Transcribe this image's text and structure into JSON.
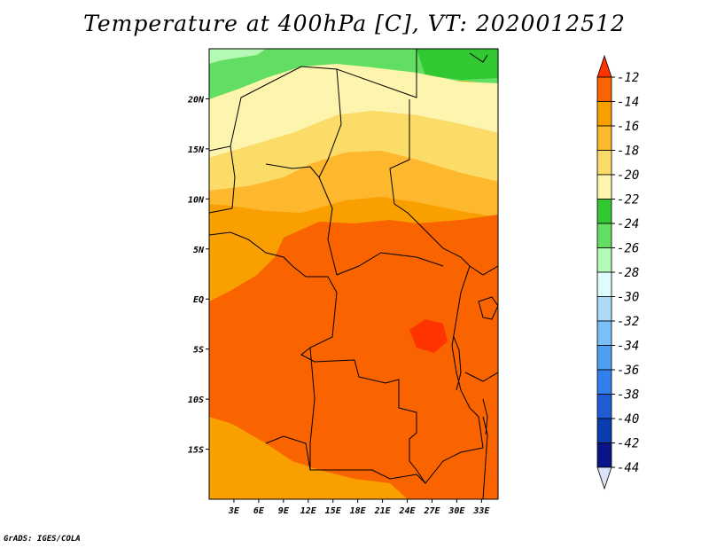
{
  "title": "Temperature at 400hPa [C], VT: 2020012512",
  "credit": "GrADS: IGES/COLA",
  "map": {
    "variable": "Temperature at 400hPa",
    "units": "C",
    "valid_time": "2020012512",
    "lon_range": [
      0,
      35
    ],
    "lat_range": [
      -20,
      25
    ],
    "lat_ticks": [
      {
        "value": 20,
        "label": "20N"
      },
      {
        "value": 15,
        "label": "15N"
      },
      {
        "value": 10,
        "label": "10N"
      },
      {
        "value": 5,
        "label": "5N"
      },
      {
        "value": 0,
        "label": "EQ"
      },
      {
        "value": -5,
        "label": "5S"
      },
      {
        "value": -10,
        "label": "10S"
      },
      {
        "value": -15,
        "label": "15S"
      }
    ],
    "lon_ticks": [
      {
        "value": 3,
        "label": "3E"
      },
      {
        "value": 6,
        "label": "6E"
      },
      {
        "value": 9,
        "label": "9E"
      },
      {
        "value": 12,
        "label": "12E"
      },
      {
        "value": 15,
        "label": "15E"
      },
      {
        "value": 18,
        "label": "18E"
      },
      {
        "value": 21,
        "label": "21E"
      },
      {
        "value": 24,
        "label": "24E"
      },
      {
        "value": 27,
        "label": "27E"
      },
      {
        "value": 30,
        "label": "30E"
      },
      {
        "value": 33,
        "label": "33E"
      }
    ]
  },
  "colorbar": {
    "labels": [
      "-12",
      "-14",
      "-16",
      "-18",
      "-20",
      "-22",
      "-24",
      "-26",
      "-28",
      "-30",
      "-32",
      "-34",
      "-36",
      "-38",
      "-40",
      "-42",
      "-44"
    ],
    "colors": [
      "#ff3300",
      "#f96400",
      "#f99f00",
      "#fdb82e",
      "#fcdc68",
      "#fdf5ad",
      "#32c832",
      "#62df62",
      "#b4f9b4",
      "#e0fbfd",
      "#aedaf9",
      "#7abff7",
      "#4e9ff2",
      "#3180eb",
      "#1e5ed2",
      "#0b3cad",
      "#08148a",
      "#dce2f7"
    ]
  }
}
